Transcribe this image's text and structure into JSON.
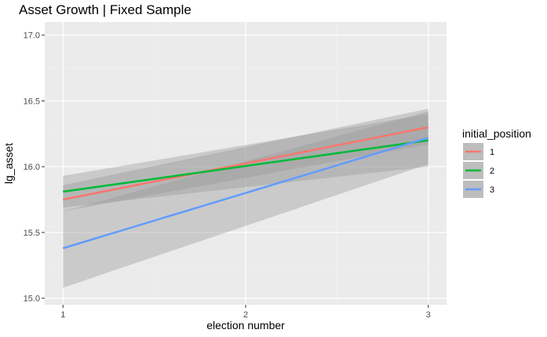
{
  "chart_data": {
    "type": "line",
    "title": "Asset Growth | Fixed Sample",
    "xlabel": "election number",
    "ylabel": "lg_asset",
    "xlim": [
      0.9,
      3.1
    ],
    "ylim": [
      14.95,
      17.1
    ],
    "x_ticks": [
      1,
      2,
      3
    ],
    "x_tick_labels": [
      "1",
      "2",
      "3"
    ],
    "y_ticks": [
      15.0,
      15.5,
      16.0,
      16.5,
      17.0
    ],
    "y_tick_labels": [
      "15.0",
      "15.5",
      "16.0",
      "16.5",
      "17.0"
    ],
    "grid": true,
    "confidence_bands": true,
    "legend": {
      "title": "initial_position",
      "position": "right",
      "entries": [
        "1",
        "2",
        "3"
      ]
    },
    "series": [
      {
        "name": "1",
        "color": "#F8766D",
        "x": [
          1,
          3
        ],
        "y": [
          15.75,
          16.3
        ],
        "ci_lower": [
          15.66,
          16.17
        ],
        "ci_upper": [
          15.86,
          16.44
        ]
      },
      {
        "name": "2",
        "color": "#00BA38",
        "x": [
          1,
          3
        ],
        "y": [
          15.81,
          16.2
        ],
        "ci_lower": [
          15.69,
          16.0
        ],
        "ci_upper": [
          15.93,
          16.4
        ]
      },
      {
        "name": "3",
        "color": "#619CFF",
        "x": [
          1,
          3
        ],
        "y": [
          15.38,
          16.22
        ],
        "ci_lower": [
          15.08,
          16.02
        ],
        "ci_upper": [
          15.66,
          16.42
        ]
      }
    ]
  }
}
